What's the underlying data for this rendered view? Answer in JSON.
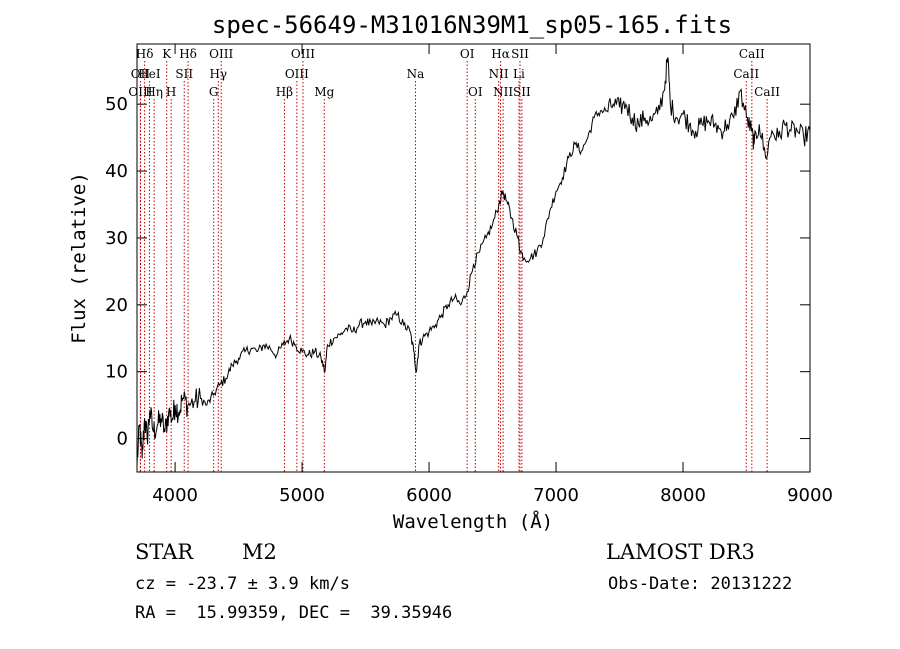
{
  "chart_data": {
    "type": "line",
    "title": "spec-56649-M31016N39M1_sp05-165.fits",
    "xlabel": "Wavelength (Å)",
    "ylabel": "Flux (relative)",
    "xlim": [
      3700,
      9000
    ],
    "ylim": [
      -5,
      59
    ],
    "x_ticks": [
      4000,
      5000,
      6000,
      7000,
      8000,
      9000
    ],
    "y_ticks": [
      0,
      10,
      20,
      30,
      40,
      50
    ],
    "series": [
      {
        "name": "spectrum",
        "color": "#000000",
        "points": [
          [
            3700,
            -4
          ],
          [
            3720,
            2
          ],
          [
            3740,
            -3
          ],
          [
            3760,
            3
          ],
          [
            3780,
            0
          ],
          [
            3800,
            4
          ],
          [
            3830,
            1
          ],
          [
            3860,
            2
          ],
          [
            3890,
            3
          ],
          [
            3920,
            1
          ],
          [
            3950,
            4
          ],
          [
            3980,
            3
          ],
          [
            4000,
            5
          ],
          [
            4030,
            4
          ],
          [
            4060,
            6
          ],
          [
            4100,
            5
          ],
          [
            4150,
            5.5
          ],
          [
            4200,
            6
          ],
          [
            4250,
            5
          ],
          [
            4300,
            6.5
          ],
          [
            4350,
            8
          ],
          [
            4400,
            9
          ],
          [
            4450,
            11
          ],
          [
            4500,
            12
          ],
          [
            4550,
            13
          ],
          [
            4600,
            13.5
          ],
          [
            4650,
            13
          ],
          [
            4700,
            14
          ],
          [
            4750,
            13.5
          ],
          [
            4800,
            12.5
          ],
          [
            4850,
            14
          ],
          [
            4900,
            15
          ],
          [
            4950,
            14
          ],
          [
            5000,
            13
          ],
          [
            5050,
            12.5
          ],
          [
            5100,
            13
          ],
          [
            5150,
            12
          ],
          [
            5180,
            10
          ],
          [
            5200,
            14
          ],
          [
            5250,
            15
          ],
          [
            5300,
            15.5
          ],
          [
            5350,
            16.5
          ],
          [
            5400,
            16
          ],
          [
            5450,
            17
          ],
          [
            5500,
            17.5
          ],
          [
            5550,
            17
          ],
          [
            5600,
            17.5
          ],
          [
            5650,
            17
          ],
          [
            5700,
            18
          ],
          [
            5750,
            18.5
          ],
          [
            5800,
            17
          ],
          [
            5850,
            16
          ],
          [
            5880,
            13
          ],
          [
            5900,
            10
          ],
          [
            5920,
            14
          ],
          [
            5950,
            15
          ],
          [
            6000,
            16
          ],
          [
            6050,
            17
          ],
          [
            6100,
            18.5
          ],
          [
            6150,
            20
          ],
          [
            6200,
            21
          ],
          [
            6250,
            20
          ],
          [
            6300,
            22
          ],
          [
            6350,
            26
          ],
          [
            6400,
            28
          ],
          [
            6450,
            30
          ],
          [
            6500,
            32
          ],
          [
            6550,
            35
          ],
          [
            6580,
            37
          ],
          [
            6620,
            35
          ],
          [
            6650,
            33
          ],
          [
            6700,
            30
          ],
          [
            6720,
            28
          ],
          [
            6750,
            27
          ],
          [
            6800,
            27
          ],
          [
            6850,
            28
          ],
          [
            6900,
            30
          ],
          [
            6950,
            34
          ],
          [
            7000,
            37
          ],
          [
            7050,
            39
          ],
          [
            7100,
            42
          ],
          [
            7150,
            44
          ],
          [
            7200,
            43
          ],
          [
            7250,
            45
          ],
          [
            7300,
            48
          ],
          [
            7350,
            49
          ],
          [
            7400,
            49
          ],
          [
            7450,
            50
          ],
          [
            7500,
            49.5
          ],
          [
            7550,
            50
          ],
          [
            7600,
            48
          ],
          [
            7650,
            47
          ],
          [
            7700,
            48
          ],
          [
            7750,
            47.5
          ],
          [
            7800,
            48.5
          ],
          [
            7850,
            52
          ],
          [
            7880,
            57
          ],
          [
            7900,
            50
          ],
          [
            7950,
            48
          ],
          [
            8000,
            48.5
          ],
          [
            8050,
            47
          ],
          [
            8100,
            46
          ],
          [
            8150,
            47
          ],
          [
            8200,
            47.5
          ],
          [
            8250,
            47
          ],
          [
            8300,
            46
          ],
          [
            8350,
            47
          ],
          [
            8400,
            48
          ],
          [
            8450,
            52
          ],
          [
            8500,
            48
          ],
          [
            8540,
            46
          ],
          [
            8560,
            44
          ],
          [
            8600,
            47
          ],
          [
            8650,
            42
          ],
          [
            8700,
            46
          ],
          [
            8750,
            45
          ],
          [
            8800,
            47
          ],
          [
            8850,
            46
          ],
          [
            8900,
            46
          ],
          [
            8950,
            45
          ],
          [
            9000,
            46
          ]
        ]
      }
    ],
    "line_marker_color": "#c00000",
    "lines": [
      {
        "label": "Hδ",
        "wl": 3760,
        "row": 0
      },
      {
        "label": "OII",
        "wl": 3727,
        "row": 1
      },
      {
        "label": "OIII",
        "wl": 3727,
        "row": 2
      },
      {
        "label": "HeI",
        "wl": 3798,
        "row": 1
      },
      {
        "label": "K",
        "wl": 3934,
        "row": 0
      },
      {
        "label": "Hη",
        "wl": 3835,
        "row": 2
      },
      {
        "label": "SII",
        "wl": 4072,
        "row": 1
      },
      {
        "label": "H",
        "wl": 3969,
        "row": 2
      },
      {
        "label": "Hδ",
        "wl": 4102,
        "row": 0
      },
      {
        "label": "OIII",
        "wl": 4363,
        "row": 0
      },
      {
        "label": "Hγ",
        "wl": 4340,
        "row": 1
      },
      {
        "label": "G",
        "wl": 4304,
        "row": 2
      },
      {
        "label": "OIII",
        "wl": 5007,
        "row": 0
      },
      {
        "label": "OIII",
        "wl": 4959,
        "row": 1
      },
      {
        "label": "Hβ",
        "wl": 4861,
        "row": 2
      },
      {
        "label": "Mg",
        "wl": 5175,
        "row": 2
      },
      {
        "label": "Na",
        "wl": 5893,
        "row": 1
      },
      {
        "label": "OI",
        "wl": 6300,
        "row": 0
      },
      {
        "label": "OI",
        "wl": 6364,
        "row": 2
      },
      {
        "label": "Hα",
        "wl": 6563,
        "row": 0
      },
      {
        "label": "SII",
        "wl": 6716,
        "row": 0
      },
      {
        "label": "NII",
        "wl": 6548,
        "row": 1
      },
      {
        "label": "Li",
        "wl": 6708,
        "row": 1
      },
      {
        "label": "NII",
        "wl": 6583,
        "row": 2
      },
      {
        "label": "SII",
        "wl": 6731,
        "row": 2
      },
      {
        "label": "CaII",
        "wl": 8542,
        "row": 0
      },
      {
        "label": "CaII",
        "wl": 8498,
        "row": 1
      },
      {
        "label": "CaII",
        "wl": 8662,
        "row": 2
      }
    ]
  },
  "info": {
    "object_class": "STAR",
    "subclass": "M2",
    "survey": "LAMOST DR3",
    "cz_line": "cz = -23.7 ± 3.9 km/s",
    "obs_date_line": "Obs-Date: 20131222",
    "coords_line": "RA =  15.99359, DEC =  39.35946"
  }
}
